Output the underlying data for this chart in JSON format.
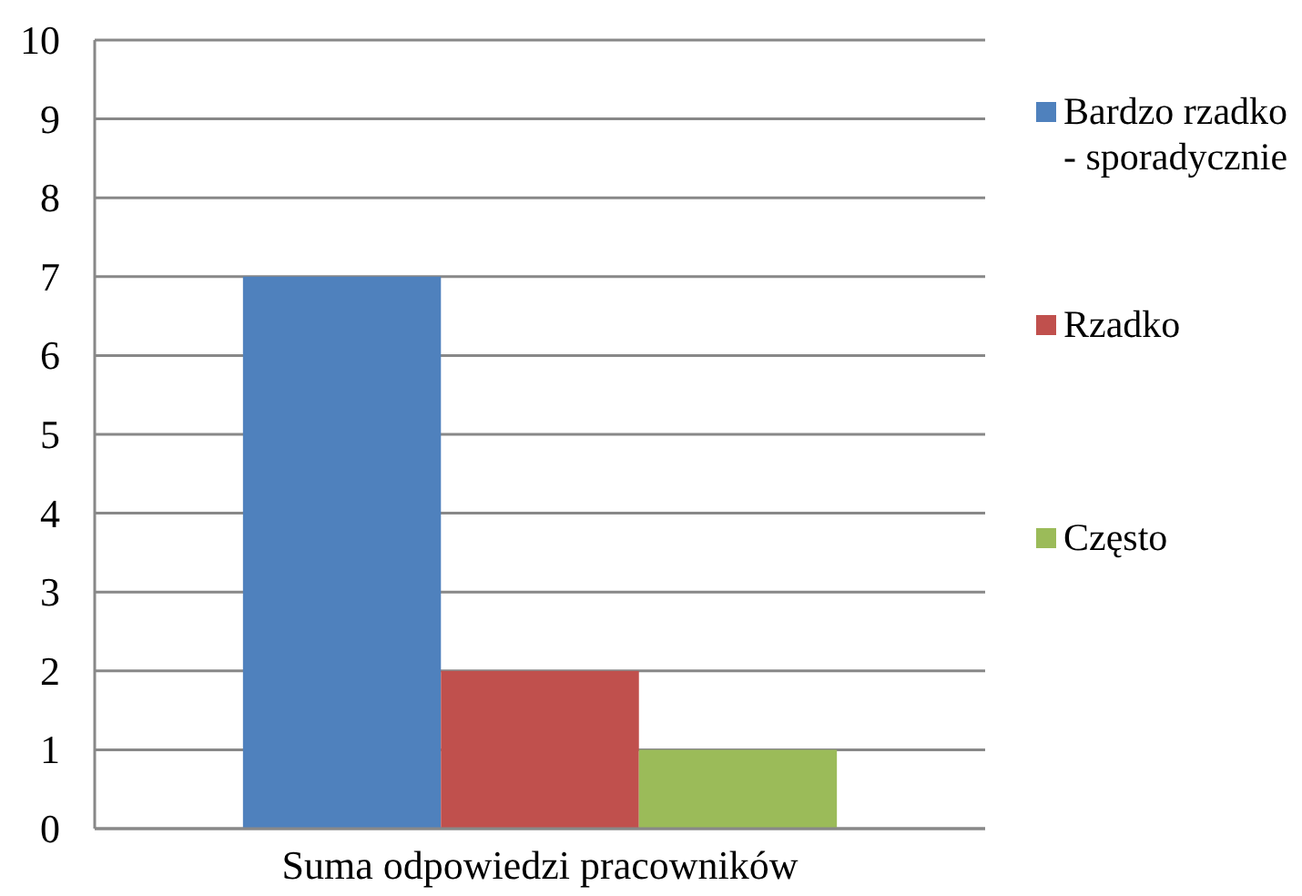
{
  "chart_data": {
    "type": "bar",
    "categories": [
      "Suma odpowiedzi pracowników"
    ],
    "series": [
      {
        "name": "Bardzo rzadko - sporadycznie",
        "color": "#4f81bd",
        "values": [
          7
        ]
      },
      {
        "name": "Rzadko",
        "color": "#c0504d",
        "values": [
          2
        ]
      },
      {
        "name": "Często",
        "color": "#9bbb59",
        "values": [
          1
        ]
      }
    ],
    "ylim": [
      0,
      10
    ],
    "yticks": [
      0,
      1,
      2,
      3,
      4,
      5,
      6,
      7,
      8,
      9,
      10
    ],
    "grid": "y",
    "legend": "right"
  }
}
